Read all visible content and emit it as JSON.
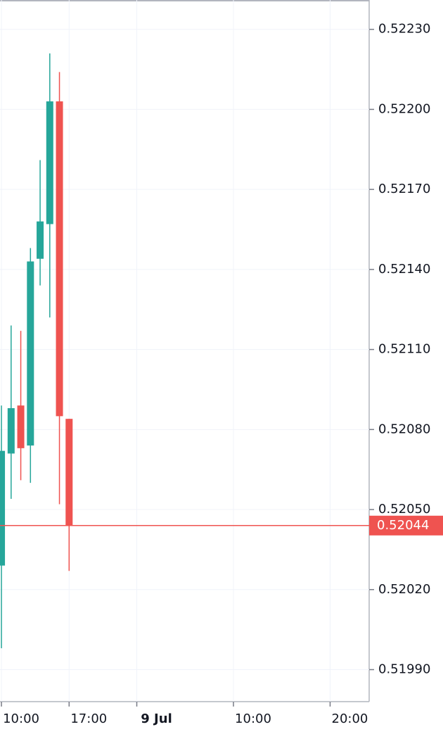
{
  "chart_data": {
    "type": "candlestick",
    "x": [
      10,
      11,
      12,
      13,
      14,
      15,
      16,
      17
    ],
    "open": [
      0.52029,
      0.52071,
      0.52089,
      0.52074,
      0.52144,
      0.52157,
      0.52203,
      0.52084
    ],
    "high": [
      0.52089,
      0.52119,
      0.52117,
      0.52148,
      0.52181,
      0.52221,
      0.52214,
      0.52084
    ],
    "low": [
      0.51998,
      0.52054,
      0.52061,
      0.5206,
      0.52134,
      0.52122,
      0.52052,
      0.52027
    ],
    "close": [
      0.52072,
      0.52088,
      0.52073,
      0.52143,
      0.52158,
      0.52203,
      0.52085,
      0.52044
    ],
    "up_color": "#26a69a",
    "down_color": "#ef5350",
    "last_price": {
      "value": 0.52044,
      "label": "0.52044"
    },
    "xlim": [
      9.85,
      48.04
    ],
    "xticks": [
      {
        "value": 10,
        "label": "10:00"
      },
      {
        "value": 17,
        "label": "17:00"
      },
      {
        "value": 24,
        "label": "9 Jul"
      },
      {
        "value": 34,
        "label": "10:00"
      },
      {
        "value": 44,
        "label": "20:00"
      }
    ],
    "ylim": [
      0.51978,
      0.52241
    ],
    "yticks": [
      {
        "value": 0.5199,
        "label": "0.51990"
      },
      {
        "value": 0.5202,
        "label": "0.52020"
      },
      {
        "value": 0.5205,
        "label": "0.52050"
      },
      {
        "value": 0.5208,
        "label": "0.52080"
      },
      {
        "value": 0.5211,
        "label": "0.52110"
      },
      {
        "value": 0.5214,
        "label": "0.52140"
      },
      {
        "value": 0.5217,
        "label": "0.52170"
      },
      {
        "value": 0.522,
        "label": "0.52200"
      },
      {
        "value": 0.5223,
        "label": "0.52230"
      }
    ],
    "grid": true
  }
}
